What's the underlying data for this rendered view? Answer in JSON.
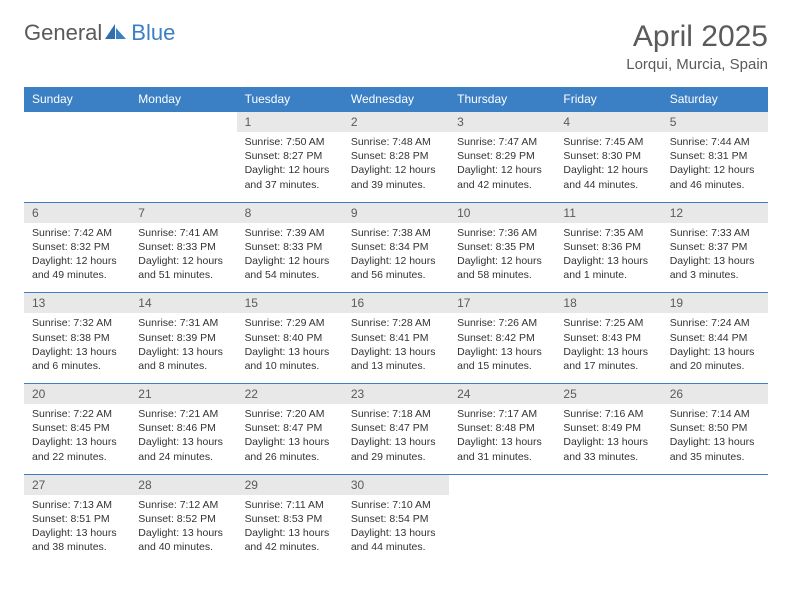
{
  "brand": {
    "part1": "General",
    "part2": "Blue"
  },
  "title": "April 2025",
  "location": "Lorqui, Murcia, Spain",
  "colors": {
    "header_bg": "#3b7fc4",
    "header_text": "#ffffff",
    "daynum_bg": "#e8e8e8",
    "text_muted": "#5a5a5a",
    "body_text": "#333333",
    "page_bg": "#ffffff"
  },
  "typography": {
    "title_size": 30,
    "location_size": 15,
    "dow_size": 12,
    "cell_size": 10.5
  },
  "days_of_week": [
    "Sunday",
    "Monday",
    "Tuesday",
    "Wednesday",
    "Thursday",
    "Friday",
    "Saturday"
  ],
  "weeks": [
    [
      null,
      null,
      {
        "n": "1",
        "sunrise": "7:50 AM",
        "sunset": "8:27 PM",
        "daylight": "12 hours and 37 minutes."
      },
      {
        "n": "2",
        "sunrise": "7:48 AM",
        "sunset": "8:28 PM",
        "daylight": "12 hours and 39 minutes."
      },
      {
        "n": "3",
        "sunrise": "7:47 AM",
        "sunset": "8:29 PM",
        "daylight": "12 hours and 42 minutes."
      },
      {
        "n": "4",
        "sunrise": "7:45 AM",
        "sunset": "8:30 PM",
        "daylight": "12 hours and 44 minutes."
      },
      {
        "n": "5",
        "sunrise": "7:44 AM",
        "sunset": "8:31 PM",
        "daylight": "12 hours and 46 minutes."
      }
    ],
    [
      {
        "n": "6",
        "sunrise": "7:42 AM",
        "sunset": "8:32 PM",
        "daylight": "12 hours and 49 minutes."
      },
      {
        "n": "7",
        "sunrise": "7:41 AM",
        "sunset": "8:33 PM",
        "daylight": "12 hours and 51 minutes."
      },
      {
        "n": "8",
        "sunrise": "7:39 AM",
        "sunset": "8:33 PM",
        "daylight": "12 hours and 54 minutes."
      },
      {
        "n": "9",
        "sunrise": "7:38 AM",
        "sunset": "8:34 PM",
        "daylight": "12 hours and 56 minutes."
      },
      {
        "n": "10",
        "sunrise": "7:36 AM",
        "sunset": "8:35 PM",
        "daylight": "12 hours and 58 minutes."
      },
      {
        "n": "11",
        "sunrise": "7:35 AM",
        "sunset": "8:36 PM",
        "daylight": "13 hours and 1 minute."
      },
      {
        "n": "12",
        "sunrise": "7:33 AM",
        "sunset": "8:37 PM",
        "daylight": "13 hours and 3 minutes."
      }
    ],
    [
      {
        "n": "13",
        "sunrise": "7:32 AM",
        "sunset": "8:38 PM",
        "daylight": "13 hours and 6 minutes."
      },
      {
        "n": "14",
        "sunrise": "7:31 AM",
        "sunset": "8:39 PM",
        "daylight": "13 hours and 8 minutes."
      },
      {
        "n": "15",
        "sunrise": "7:29 AM",
        "sunset": "8:40 PM",
        "daylight": "13 hours and 10 minutes."
      },
      {
        "n": "16",
        "sunrise": "7:28 AM",
        "sunset": "8:41 PM",
        "daylight": "13 hours and 13 minutes."
      },
      {
        "n": "17",
        "sunrise": "7:26 AM",
        "sunset": "8:42 PM",
        "daylight": "13 hours and 15 minutes."
      },
      {
        "n": "18",
        "sunrise": "7:25 AM",
        "sunset": "8:43 PM",
        "daylight": "13 hours and 17 minutes."
      },
      {
        "n": "19",
        "sunrise": "7:24 AM",
        "sunset": "8:44 PM",
        "daylight": "13 hours and 20 minutes."
      }
    ],
    [
      {
        "n": "20",
        "sunrise": "7:22 AM",
        "sunset": "8:45 PM",
        "daylight": "13 hours and 22 minutes."
      },
      {
        "n": "21",
        "sunrise": "7:21 AM",
        "sunset": "8:46 PM",
        "daylight": "13 hours and 24 minutes."
      },
      {
        "n": "22",
        "sunrise": "7:20 AM",
        "sunset": "8:47 PM",
        "daylight": "13 hours and 26 minutes."
      },
      {
        "n": "23",
        "sunrise": "7:18 AM",
        "sunset": "8:47 PM",
        "daylight": "13 hours and 29 minutes."
      },
      {
        "n": "24",
        "sunrise": "7:17 AM",
        "sunset": "8:48 PM",
        "daylight": "13 hours and 31 minutes."
      },
      {
        "n": "25",
        "sunrise": "7:16 AM",
        "sunset": "8:49 PM",
        "daylight": "13 hours and 33 minutes."
      },
      {
        "n": "26",
        "sunrise": "7:14 AM",
        "sunset": "8:50 PM",
        "daylight": "13 hours and 35 minutes."
      }
    ],
    [
      {
        "n": "27",
        "sunrise": "7:13 AM",
        "sunset": "8:51 PM",
        "daylight": "13 hours and 38 minutes."
      },
      {
        "n": "28",
        "sunrise": "7:12 AM",
        "sunset": "8:52 PM",
        "daylight": "13 hours and 40 minutes."
      },
      {
        "n": "29",
        "sunrise": "7:11 AM",
        "sunset": "8:53 PM",
        "daylight": "13 hours and 42 minutes."
      },
      {
        "n": "30",
        "sunrise": "7:10 AM",
        "sunset": "8:54 PM",
        "daylight": "13 hours and 44 minutes."
      },
      null,
      null,
      null
    ]
  ],
  "labels": {
    "sunrise": "Sunrise:",
    "sunset": "Sunset:",
    "daylight": "Daylight:"
  }
}
